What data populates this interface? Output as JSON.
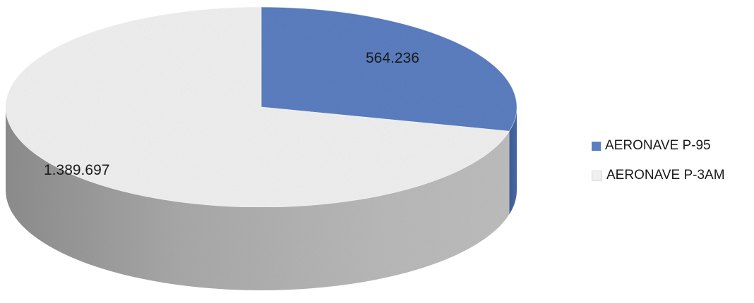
{
  "chart_data": {
    "type": "pie",
    "style": "3d",
    "title": "",
    "categories": [
      "AERONAVE P-95",
      "AERONAVE P-3AM"
    ],
    "values": [
      564236,
      1389697
    ],
    "data_labels": [
      "564.236",
      "1.389.697"
    ],
    "colors": [
      "#5b7ec0",
      "#efefef"
    ],
    "legend_position": "right"
  },
  "legend": {
    "items": [
      {
        "label": "AERONAVE P-95",
        "color": "#5b7ec0"
      },
      {
        "label": "AERONAVE P-3AM",
        "color": "#efefef"
      }
    ]
  }
}
